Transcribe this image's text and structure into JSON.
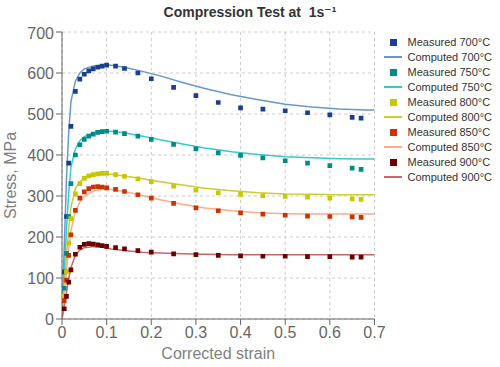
{
  "chart_data": {
    "type": "line",
    "title": "Compression Test at  1s⁻¹",
    "xlabel": "Corrected strain",
    "ylabel": "Stress, MPa",
    "xlim": [
      0,
      0.7
    ],
    "ylim": [
      0,
      700
    ],
    "xticks": [
      0,
      0.1,
      0.2,
      0.3,
      0.4,
      0.5,
      0.6,
      0.7
    ],
    "yticks": [
      0,
      100,
      200,
      300,
      400,
      500,
      600,
      700
    ],
    "grid": true,
    "legend": "upper right",
    "series": [
      {
        "name": "Measured 700°C",
        "type": "scatter",
        "marker": "square",
        "color": "#1B3F8F",
        "x": [
          0.005,
          0.01,
          0.015,
          0.02,
          0.03,
          0.04,
          0.05,
          0.06,
          0.07,
          0.08,
          0.09,
          0.1,
          0.12,
          0.14,
          0.17,
          0.2,
          0.25,
          0.3,
          0.35,
          0.4,
          0.45,
          0.5,
          0.55,
          0.6,
          0.65,
          0.67
        ],
        "values": [
          115,
          250,
          380,
          470,
          555,
          585,
          597,
          605,
          610,
          614,
          617,
          619,
          617,
          611,
          600,
          586,
          565,
          545,
          528,
          515,
          512,
          508,
          503,
          498,
          492,
          490
        ]
      },
      {
        "name": "Computed 700°C",
        "type": "line",
        "line_style": "solid",
        "color": "#6699CC",
        "x": [
          0.0,
          0.002,
          0.005,
          0.01,
          0.015,
          0.02,
          0.03,
          0.04,
          0.05,
          0.07,
          0.09,
          0.11,
          0.14,
          0.18,
          0.22,
          0.27,
          0.32,
          0.38,
          0.44,
          0.5,
          0.56,
          0.62,
          0.68,
          0.7
        ],
        "values": [
          0,
          70,
          175,
          340,
          455,
          530,
          580,
          600,
          610,
          617,
          620,
          619,
          614,
          604,
          593,
          577,
          562,
          547,
          535,
          524,
          517,
          512,
          510,
          510
        ]
      },
      {
        "name": "Measured 750°C",
        "type": "scatter",
        "marker": "square",
        "color": "#008B8B",
        "x": [
          0.005,
          0.01,
          0.015,
          0.02,
          0.03,
          0.04,
          0.05,
          0.06,
          0.07,
          0.08,
          0.09,
          0.1,
          0.12,
          0.14,
          0.17,
          0.2,
          0.25,
          0.3,
          0.35,
          0.4,
          0.45,
          0.5,
          0.55,
          0.6,
          0.65,
          0.67
        ],
        "values": [
          75,
          160,
          250,
          330,
          400,
          425,
          438,
          446,
          451,
          455,
          457,
          458,
          456,
          452,
          446,
          438,
          426,
          415,
          405,
          399,
          393,
          386,
          380,
          374,
          368,
          365
        ]
      },
      {
        "name": "Computed 750°C",
        "type": "line",
        "line_style": "solid",
        "color": "#33CCCC",
        "x": [
          0.0,
          0.002,
          0.005,
          0.01,
          0.015,
          0.02,
          0.03,
          0.04,
          0.05,
          0.07,
          0.09,
          0.11,
          0.14,
          0.18,
          0.22,
          0.27,
          0.32,
          0.38,
          0.44,
          0.5,
          0.56,
          0.62,
          0.68,
          0.7
        ],
        "values": [
          0,
          45,
          110,
          220,
          305,
          370,
          415,
          435,
          445,
          454,
          458,
          458,
          454,
          446,
          437,
          427,
          417,
          408,
          401,
          396,
          393,
          391,
          390,
          390
        ]
      },
      {
        "name": "Measured 800°C",
        "type": "scatter",
        "marker": "square",
        "color": "#C8C800",
        "x": [
          0.005,
          0.01,
          0.015,
          0.02,
          0.03,
          0.04,
          0.05,
          0.06,
          0.07,
          0.08,
          0.09,
          0.1,
          0.12,
          0.14,
          0.17,
          0.2,
          0.25,
          0.3,
          0.35,
          0.4,
          0.45,
          0.5,
          0.55,
          0.6,
          0.65,
          0.67
        ],
        "values": [
          55,
          115,
          185,
          245,
          305,
          330,
          343,
          349,
          352,
          354,
          355,
          355,
          352,
          348,
          342,
          335,
          324,
          314,
          308,
          304,
          301,
          299,
          297,
          295,
          293,
          292
        ]
      },
      {
        "name": "Computed 800°C",
        "type": "line",
        "line_style": "solid",
        "color": "#CCCC33",
        "x": [
          0.0,
          0.002,
          0.005,
          0.01,
          0.015,
          0.02,
          0.03,
          0.04,
          0.05,
          0.07,
          0.09,
          0.11,
          0.14,
          0.18,
          0.22,
          0.27,
          0.32,
          0.38,
          0.44,
          0.5,
          0.56,
          0.62,
          0.68,
          0.7
        ],
        "values": [
          0,
          30,
          75,
          155,
          220,
          272,
          318,
          335,
          343,
          350,
          353,
          353,
          349,
          342,
          335,
          327,
          319,
          313,
          308,
          305,
          304,
          303,
          303,
          303
        ]
      },
      {
        "name": "Measured 850°C",
        "type": "scatter",
        "marker": "square",
        "color": "#CC3300",
        "x": [
          0.005,
          0.01,
          0.015,
          0.02,
          0.03,
          0.04,
          0.05,
          0.06,
          0.07,
          0.08,
          0.09,
          0.1,
          0.12,
          0.14,
          0.17,
          0.2,
          0.25,
          0.3,
          0.35,
          0.4,
          0.45,
          0.5,
          0.55,
          0.6,
          0.65,
          0.67
        ],
        "values": [
          45,
          95,
          155,
          205,
          265,
          295,
          310,
          318,
          322,
          323,
          322,
          320,
          316,
          311,
          303,
          295,
          282,
          271,
          264,
          259,
          256,
          253,
          251,
          250,
          249,
          248
        ]
      },
      {
        "name": "Computed 850°C",
        "type": "line",
        "line_style": "solid",
        "color": "#FFAA88",
        "x": [
          0.0,
          0.002,
          0.005,
          0.01,
          0.015,
          0.02,
          0.03,
          0.04,
          0.05,
          0.07,
          0.09,
          0.11,
          0.14,
          0.18,
          0.22,
          0.27,
          0.32,
          0.38,
          0.44,
          0.5,
          0.56,
          0.62,
          0.68,
          0.7
        ],
        "values": [
          0,
          22,
          55,
          118,
          172,
          215,
          263,
          285,
          299,
          312,
          317,
          316,
          311,
          301,
          291,
          280,
          271,
          264,
          259,
          257,
          256,
          256,
          256,
          256
        ]
      },
      {
        "name": "Measured 900°C",
        "type": "scatter",
        "marker": "square",
        "color": "#6B0000",
        "x": [
          0.005,
          0.01,
          0.015,
          0.02,
          0.03,
          0.04,
          0.05,
          0.06,
          0.07,
          0.08,
          0.09,
          0.1,
          0.12,
          0.14,
          0.17,
          0.2,
          0.25,
          0.3,
          0.35,
          0.4,
          0.45,
          0.5,
          0.55,
          0.6,
          0.65,
          0.67
        ],
        "values": [
          25,
          55,
          90,
          120,
          158,
          175,
          182,
          184,
          183,
          181,
          179,
          177,
          174,
          171,
          167,
          163,
          159,
          157,
          155,
          154,
          153,
          153,
          152,
          152,
          151,
          151
        ]
      },
      {
        "name": "Computed 900°C",
        "type": "line",
        "line_style": "solid",
        "color": "#CC6666",
        "x": [
          0.0,
          0.002,
          0.005,
          0.01,
          0.015,
          0.02,
          0.03,
          0.04,
          0.05,
          0.07,
          0.09,
          0.11,
          0.14,
          0.18,
          0.22,
          0.27,
          0.32,
          0.38,
          0.44,
          0.5,
          0.56,
          0.62,
          0.68,
          0.7
        ],
        "values": [
          0,
          12,
          30,
          65,
          98,
          125,
          156,
          168,
          174,
          177,
          175,
          171,
          167,
          163,
          161,
          159,
          158,
          157,
          157,
          157,
          157,
          157,
          157,
          157
        ]
      }
    ]
  }
}
